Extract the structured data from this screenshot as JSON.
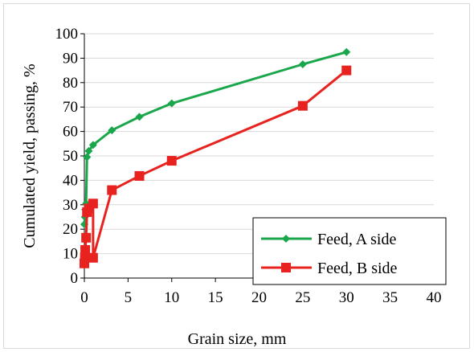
{
  "chart_data": {
    "type": "line",
    "title": "",
    "xlabel": "Grain size, mm",
    "ylabel": "Cumulated yield, passing, %",
    "xlim": [
      0,
      40
    ],
    "ylim": [
      0,
      100
    ],
    "x_ticks": [
      0,
      5,
      10,
      15,
      20,
      25,
      30,
      35,
      40
    ],
    "y_ticks": [
      0,
      10,
      20,
      30,
      40,
      50,
      60,
      70,
      80,
      90,
      100
    ],
    "grid": "horizontal",
    "legend_position": "bottom-right",
    "series": [
      {
        "name": "Feed, A side",
        "color": "#1aa64a",
        "marker": "diamond",
        "x": [
          0.0,
          0.06,
          0.1,
          0.2,
          0.3,
          0.5,
          1.0,
          3.15,
          6.3,
          10,
          25,
          30
        ],
        "y": [
          22,
          25,
          28,
          30.5,
          49.5,
          52,
          54.5,
          60.5,
          66,
          71.5,
          87.5,
          92.5
        ]
      },
      {
        "name": "Feed, B side",
        "color": "#e8231f",
        "marker": "square",
        "x": [
          0.0,
          0.06,
          0.1,
          0.2,
          0.3,
          0.5,
          1.0,
          1.0,
          3.15,
          6.3,
          10,
          25,
          30
        ],
        "y": [
          6,
          8.5,
          11.5,
          16.5,
          27,
          28.5,
          30.5,
          8.3,
          36,
          41.8,
          48,
          70.5,
          85
        ]
      }
    ]
  }
}
